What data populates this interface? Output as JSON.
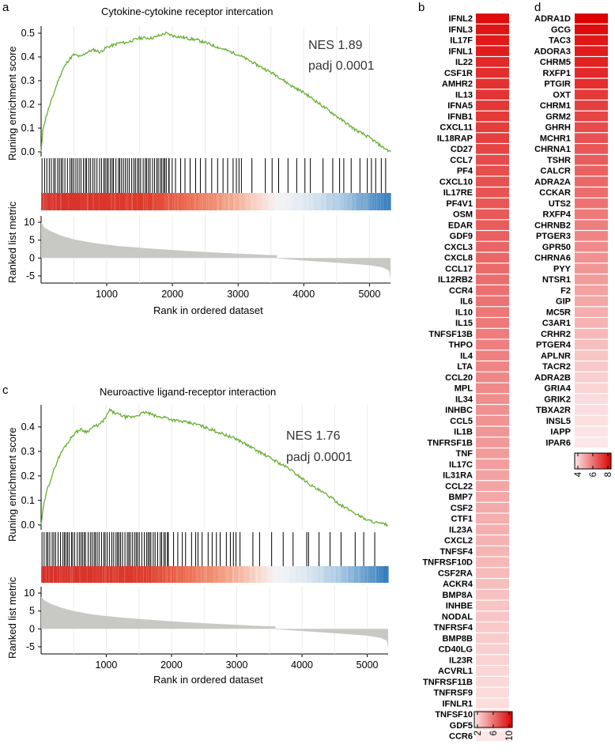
{
  "panels": {
    "a": {
      "letter": "a",
      "title": "Cytokine-cytokine receptor intercation",
      "nes": "NES 1.89",
      "padj": "padj 0.0001"
    },
    "b": {
      "letter": "b"
    },
    "c": {
      "letter": "c",
      "title": "Neuroactive ligand-receptor interaction",
      "nes": "NES 1.76",
      "padj": "padj 0.0001"
    },
    "d": {
      "letter": "d"
    }
  },
  "axes": {
    "es_ylabel": "Runing enrichment score",
    "rank_ylabel": "Ranked list metric",
    "xlabel": "Rank in ordered dataset"
  },
  "chart_data": [
    {
      "type": "line",
      "panel": "a",
      "title": "Cytokine-cytokine receptor intercation",
      "xlabel": "Rank in ordered dataset",
      "ylabel": "Runing enrichment score",
      "xlim": [
        1,
        5320
      ],
      "ylim": [
        -0.02,
        0.53
      ],
      "xticks": [
        "1000",
        "2000",
        "3000",
        "4000",
        "5000"
      ],
      "yticks": [
        "0.0",
        "0.1",
        "0.2",
        "0.3",
        "0.4",
        "0.5"
      ],
      "color": "#66b032",
      "x": [
        1,
        30,
        60,
        100,
        150,
        200,
        260,
        320,
        400,
        500,
        600,
        700,
        800,
        900,
        1000,
        1100,
        1200,
        1300,
        1400,
        1500,
        1600,
        1700,
        1800,
        1900,
        2000,
        2200,
        2400,
        2600,
        2800,
        3000,
        3200,
        3400,
        3600,
        3800,
        4000,
        4200,
        4400,
        4600,
        4800,
        5000,
        5200,
        5320
      ],
      "y": [
        0.0,
        0.1,
        0.13,
        0.17,
        0.21,
        0.25,
        0.3,
        0.34,
        0.38,
        0.41,
        0.4,
        0.42,
        0.43,
        0.42,
        0.44,
        0.45,
        0.46,
        0.46,
        0.47,
        0.48,
        0.48,
        0.48,
        0.49,
        0.5,
        0.49,
        0.48,
        0.47,
        0.45,
        0.43,
        0.41,
        0.38,
        0.35,
        0.32,
        0.28,
        0.25,
        0.21,
        0.17,
        0.13,
        0.09,
        0.06,
        0.02,
        0.0
      ],
      "nes": "NES 1.89",
      "padj": "padj 0.0001"
    },
    {
      "type": "area",
      "panel": "a",
      "ylabel": "Ranked list metric",
      "xlabel": "Rank in ordered dataset",
      "yticks": [
        "10",
        "5",
        "0",
        "-5"
      ],
      "ylim": [
        -7,
        12
      ],
      "x": [
        1,
        50,
        150,
        300,
        500,
        800,
        1200,
        1700,
        2200,
        2800,
        3400,
        3590,
        3600,
        4000,
        4500,
        5000,
        5200,
        5300,
        5320
      ],
      "y": [
        10,
        8.5,
        7.5,
        6.3,
        5.2,
        4.2,
        3.3,
        2.6,
        2.0,
        1.4,
        0.9,
        0.8,
        -0.1,
        -0.7,
        -1.3,
        -2.0,
        -2.6,
        -3.5,
        -6.0
      ]
    },
    {
      "type": "line",
      "panel": "c",
      "title": "Neuroactive ligand-receptor interaction",
      "xlabel": "Rank in ordered dataset",
      "ylabel": "Runing enrichment score",
      "xlim": [
        1,
        5320
      ],
      "ylim": [
        -0.02,
        0.49
      ],
      "xticks": [
        "1000",
        "2000",
        "3000",
        "4000",
        "5000"
      ],
      "yticks": [
        "0.0",
        "0.1",
        "0.2",
        "0.3",
        "0.4"
      ],
      "color": "#66b032",
      "x": [
        1,
        40,
        100,
        180,
        260,
        340,
        420,
        500,
        600,
        700,
        800,
        900,
        1000,
        1050,
        1100,
        1200,
        1300,
        1400,
        1500,
        1600,
        1700,
        1800,
        1900,
        2000,
        2200,
        2400,
        2600,
        2800,
        3000,
        3200,
        3400,
        3600,
        3800,
        4000,
        4200,
        4400,
        4600,
        4800,
        5000,
        5200,
        5320
      ],
      "y": [
        0.0,
        0.08,
        0.15,
        0.21,
        0.27,
        0.31,
        0.34,
        0.37,
        0.39,
        0.38,
        0.4,
        0.41,
        0.44,
        0.47,
        0.46,
        0.45,
        0.44,
        0.44,
        0.45,
        0.46,
        0.45,
        0.44,
        0.44,
        0.43,
        0.42,
        0.41,
        0.39,
        0.37,
        0.35,
        0.32,
        0.29,
        0.26,
        0.23,
        0.19,
        0.15,
        0.12,
        0.08,
        0.05,
        0.02,
        0.005,
        0.0
      ],
      "nes": "NES 1.76",
      "padj": "padj 0.0001"
    },
    {
      "type": "area",
      "panel": "c",
      "ylabel": "Ranked list metric",
      "xlabel": "Rank in ordered dataset",
      "yticks": [
        "10",
        "5",
        "0",
        "-5"
      ],
      "ylim": [
        -7,
        12
      ],
      "x": [
        1,
        50,
        150,
        300,
        500,
        800,
        1200,
        1700,
        2200,
        2800,
        3400,
        3590,
        3600,
        4000,
        4500,
        5000,
        5200,
        5300,
        5320
      ],
      "y": [
        9,
        8.0,
        7.0,
        6.0,
        5.0,
        4.0,
        3.2,
        2.5,
        1.9,
        1.3,
        0.8,
        0.7,
        -0.1,
        -0.6,
        -1.2,
        -1.9,
        -2.5,
        -3.3,
        -5.5
      ]
    },
    {
      "type": "heatmap",
      "panel": "b",
      "color_scale": {
        "min": 2,
        "max": 10,
        "ticks": [
          "2",
          "6",
          "10"
        ],
        "low_color": "#fde6e6",
        "high_color": "#dc0000"
      },
      "genes": [
        "IFNL2",
        "IFNL3",
        "IL17F",
        "IFNL1",
        "IL22",
        "CSF1R",
        "AMHR2",
        "IL13",
        "IFNA5",
        "IFNB1",
        "CXCL11",
        "IL18RAP",
        "CD27",
        "CCL7",
        "PF4",
        "CXCL10",
        "IL17RE",
        "PF4V1",
        "OSM",
        "EDAR",
        "GDF9",
        "CXCL3",
        "CXCL8",
        "CCL17",
        "IL12RB2",
        "CCR4",
        "IL6",
        "IL10",
        "IL15",
        "TNFSF13B",
        "THPO",
        "IL4",
        "LTA",
        "CCL20",
        "MPL",
        "IL34",
        "INHBC",
        "CCL5",
        "IL1B",
        "TNFRSF1B",
        "TNF",
        "IL17C",
        "IL31RA",
        "CCL22",
        "BMP7",
        "CSF2",
        "CTF1",
        "IL23A",
        "CXCL2",
        "TNFSF4",
        "TNFRSF10D",
        "CSF2RA",
        "ACKR4",
        "BMP8A",
        "INHBE",
        "NODAL",
        "TNFRSF4",
        "BMP8B",
        "CD40LG",
        "IL23R",
        "ACVRL1",
        "TNFRSF11B",
        "TNFRSF9",
        "IFNLR1",
        "TNFSF10",
        "GDF5",
        "CCR6"
      ],
      "values": [
        9.6,
        9.3,
        9.1,
        9.0,
        8.6,
        8.4,
        8.3,
        8.2,
        8.1,
        8.0,
        7.9,
        7.8,
        7.6,
        7.4,
        7.3,
        7.2,
        7.1,
        7.0,
        6.9,
        6.8,
        6.7,
        6.5,
        6.4,
        6.3,
        6.2,
        6.1,
        6.0,
        5.9,
        5.8,
        5.7,
        5.6,
        5.5,
        5.4,
        5.3,
        5.2,
        5.1,
        5.0,
        4.9,
        4.8,
        4.7,
        4.6,
        4.5,
        4.4,
        4.3,
        4.2,
        4.1,
        4.0,
        3.9,
        3.8,
        3.7,
        3.6,
        3.5,
        3.4,
        3.3,
        3.2,
        3.1,
        3.0,
        2.9,
        2.8,
        2.7,
        2.6,
        2.5,
        2.4,
        2.3,
        2.2,
        2.1,
        2.0
      ]
    },
    {
      "type": "heatmap",
      "panel": "d",
      "color_scale": {
        "min": 4,
        "max": 8,
        "ticks": [
          "4",
          "6",
          "8"
        ],
        "low_color": "#fde6e6",
        "high_color": "#dc0000"
      },
      "genes": [
        "ADRA1D",
        "GCG",
        "TAC3",
        "ADORA3",
        "CHRM5",
        "RXFP1",
        "PTGIR",
        "OXT",
        "CHRM1",
        "GRM2",
        "GHRH",
        "MCHR1",
        "CHRNA1",
        "TSHR",
        "CALCR",
        "ADRA2A",
        "CCKAR",
        "UTS2",
        "RXFP4",
        "CHRNB2",
        "PTGER3",
        "GPR50",
        "CHRNA6",
        "PYY",
        "NTSR1",
        "F2",
        "GIP",
        "MC5R",
        "C3AR1",
        "CRHR2",
        "PTGER4",
        "APLNR",
        "TACR2",
        "ADRA2B",
        "GRIA4",
        "GRIK2",
        "TBXA2R",
        "INSL5",
        "IAPP",
        "IPAR6"
      ],
      "values": [
        8.0,
        7.8,
        7.6,
        7.5,
        7.4,
        7.3,
        7.2,
        7.0,
        6.9,
        6.8,
        6.7,
        6.6,
        6.5,
        6.4,
        6.3,
        6.2,
        6.1,
        6.0,
        5.9,
        5.8,
        5.7,
        5.6,
        5.5,
        5.4,
        5.3,
        5.2,
        5.1,
        5.0,
        4.9,
        4.8,
        4.7,
        4.6,
        4.5,
        4.4,
        4.3,
        4.2,
        4.15,
        4.1,
        4.05,
        4.0
      ]
    }
  ]
}
